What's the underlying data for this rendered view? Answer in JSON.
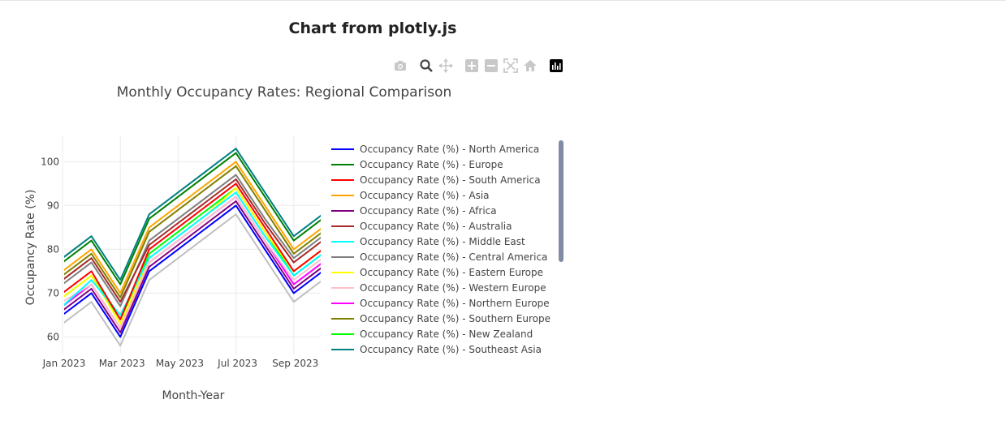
{
  "page": {
    "title": "Chart from plotly.js"
  },
  "modebar": [
    {
      "name": "camera-icon",
      "label": "Download plot as a png"
    },
    {
      "name": "zoom-icon",
      "label": "Zoom"
    },
    {
      "name": "pan-icon",
      "label": "Pan"
    },
    {
      "name": "zoom-in-icon",
      "label": "Zoom in"
    },
    {
      "name": "zoom-out-icon",
      "label": "Zoom out"
    },
    {
      "name": "autoscale-icon",
      "label": "Autoscale"
    },
    {
      "name": "home-icon",
      "label": "Reset axes"
    },
    {
      "name": "plotly-logo-icon",
      "label": "Produced with Plotly"
    }
  ],
  "chart_data": {
    "type": "line",
    "title": "Monthly Occupancy Rates: Regional Comparison",
    "xlabel": "Month-Year",
    "ylabel": "Occupancy Rate (%)",
    "x": [
      "2023-01",
      "2023-02",
      "2023-03",
      "2023-04",
      "2023-05",
      "2023-06",
      "2023-07",
      "2023-08",
      "2023-09",
      "2023-10"
    ],
    "xticks": [
      "Jan 2023",
      "Mar 2023",
      "May 2023",
      "Jul 2023",
      "Sep 2023"
    ],
    "yticks": [
      60,
      70,
      80,
      90,
      100
    ],
    "ylim": [
      56,
      106
    ],
    "grid": true,
    "legend_position": "right",
    "series": [
      {
        "name": "Occupancy Rate (%) - North America",
        "color": "#0000ff",
        "values": [
          65,
          70,
          60,
          75,
          80,
          85,
          90,
          80,
          70,
          75
        ]
      },
      {
        "name": "Occupancy Rate (%) - Europe",
        "color": "#008000",
        "values": [
          77,
          82,
          72,
          87,
          92,
          97,
          102,
          92,
          82,
          87
        ]
      },
      {
        "name": "Occupancy Rate (%) - South America",
        "color": "#ff0000",
        "values": [
          70,
          75,
          64,
          80,
          85,
          90,
          95,
          85,
          75,
          80
        ]
      },
      {
        "name": "Occupancy Rate (%) - Asia",
        "color": "#ffa500",
        "values": [
          75,
          80,
          70,
          85,
          90,
          95,
          100,
          90,
          80,
          85
        ]
      },
      {
        "name": "Occupancy Rate (%) - Africa",
        "color": "#800080",
        "values": [
          66,
          71,
          61,
          76,
          81,
          86,
          91,
          81,
          71,
          76
        ]
      },
      {
        "name": "Occupancy Rate (%) - Australia",
        "color": "#a52a2a",
        "values": [
          73,
          78,
          68,
          81,
          86,
          91,
          96,
          86,
          77,
          82
        ]
      },
      {
        "name": "Occupancy Rate (%) - Middle East",
        "color": "#00ffff",
        "values": [
          67,
          73,
          65,
          78,
          83,
          88,
          93,
          83,
          74,
          79
        ]
      },
      {
        "name": "Occupancy Rate (%) - Central America",
        "color": "#808080",
        "values": [
          72,
          77,
          67,
          82,
          87,
          92,
          97,
          87,
          78,
          83
        ]
      },
      {
        "name": "Occupancy Rate (%) - Eastern Europe",
        "color": "#ffff00",
        "values": [
          69,
          74,
          63,
          78,
          83,
          88,
          94,
          84,
          75,
          80
        ]
      },
      {
        "name": "Occupancy Rate (%) - Western Europe",
        "color": "#ffc0cb",
        "values": [
          68,
          72,
          62,
          77,
          82,
          87,
          92,
          82,
          73,
          78
        ]
      },
      {
        "name": "Occupancy Rate (%) - Northern Europe",
        "color": "#ff00ff",
        "values": [
          67,
          72,
          62,
          77,
          82,
          87,
          92,
          82,
          72,
          77
        ]
      },
      {
        "name": "Occupancy Rate (%) - Southern Europe",
        "color": "#808000",
        "values": [
          74,
          79,
          69,
          84,
          89,
          94,
          99,
          89,
          79,
          84
        ]
      },
      {
        "name": "Occupancy Rate (%) - New Zealand",
        "color": "#00ff00",
        "values": [
          69,
          74,
          64,
          79,
          84,
          89,
          94,
          84,
          74,
          79
        ]
      },
      {
        "name": "Occupancy Rate (%) - Southeast Asia",
        "color": "#008080",
        "values": [
          78,
          83,
          73,
          88,
          93,
          98,
          103,
          93,
          83,
          88
        ]
      },
      {
        "name": "",
        "color": "#c0c0c0",
        "values": [
          63,
          68,
          58,
          73,
          78,
          83,
          88,
          78,
          68,
          73
        ]
      }
    ]
  }
}
